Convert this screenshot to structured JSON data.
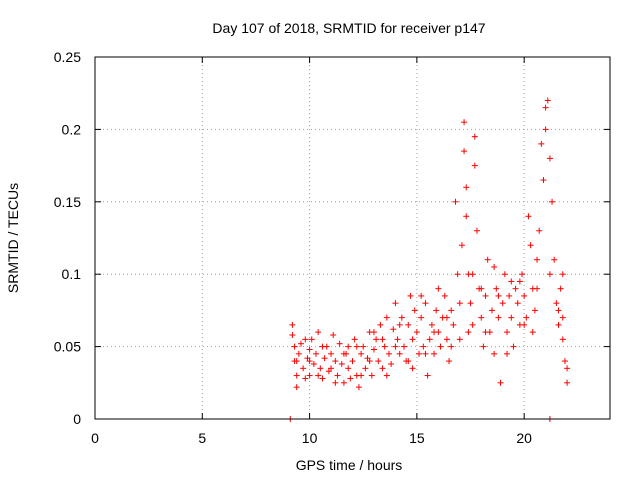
{
  "chart_data": {
    "type": "scatter",
    "title": "Day 107 of 2018, SRMTID for receiver p147",
    "xlabel": "GPS time / hours",
    "ylabel": "SRMTID / TECUs",
    "xlim": [
      0,
      24
    ],
    "ylim": [
      0,
      0.25
    ],
    "xticks": [
      0,
      5,
      10,
      15,
      20
    ],
    "yticks": [
      0,
      0.05,
      0.1,
      0.15,
      0.2,
      0.25
    ],
    "ytick_labels": [
      "0",
      "0.05",
      "0.1",
      "0.15",
      "0.2",
      "0.25"
    ],
    "grid": true,
    "series": [
      {
        "name": "SRMTID",
        "color": "#ff0000",
        "marker": "plus",
        "points": [
          [
            9.1,
            0.0
          ],
          [
            21.2,
            0.0
          ],
          [
            9.2,
            0.065
          ],
          [
            9.2,
            0.058
          ],
          [
            9.3,
            0.05
          ],
          [
            9.3,
            0.04
          ],
          [
            9.4,
            0.03
          ],
          [
            9.4,
            0.022
          ],
          [
            9.5,
            0.045
          ],
          [
            9.6,
            0.052
          ],
          [
            9.7,
            0.035
          ],
          [
            9.8,
            0.028
          ],
          [
            9.9,
            0.042
          ],
          [
            10.0,
            0.048
          ],
          [
            10.0,
            0.03
          ],
          [
            10.1,
            0.055
          ],
          [
            10.2,
            0.038
          ],
          [
            10.3,
            0.045
          ],
          [
            10.4,
            0.06
          ],
          [
            10.5,
            0.035
          ],
          [
            10.6,
            0.028
          ],
          [
            10.7,
            0.042
          ],
          [
            10.8,
            0.05
          ],
          [
            10.9,
            0.033
          ],
          [
            11.0,
            0.045
          ],
          [
            11.1,
            0.058
          ],
          [
            11.2,
            0.04
          ],
          [
            11.3,
            0.03
          ],
          [
            11.4,
            0.052
          ],
          [
            11.5,
            0.038
          ],
          [
            11.6,
            0.025
          ],
          [
            11.7,
            0.045
          ],
          [
            11.8,
            0.035
          ],
          [
            11.9,
            0.028
          ],
          [
            12.0,
            0.04
          ],
          [
            12.1,
            0.055
          ],
          [
            12.2,
            0.03
          ],
          [
            12.3,
            0.022
          ],
          [
            12.4,
            0.045
          ],
          [
            12.5,
            0.05
          ],
          [
            12.6,
            0.035
          ],
          [
            12.7,
            0.042
          ],
          [
            12.8,
            0.06
          ],
          [
            12.9,
            0.03
          ],
          [
            13.0,
            0.048
          ],
          [
            13.1,
            0.055
          ],
          [
            13.2,
            0.04
          ],
          [
            13.3,
            0.065
          ],
          [
            13.4,
            0.035
          ],
          [
            13.5,
            0.05
          ],
          [
            13.6,
            0.07
          ],
          [
            13.7,
            0.045
          ],
          [
            13.8,
            0.038
          ],
          [
            13.9,
            0.062
          ],
          [
            14.0,
            0.08
          ],
          [
            14.1,
            0.055
          ],
          [
            14.2,
            0.045
          ],
          [
            14.3,
            0.07
          ],
          [
            14.4,
            0.05
          ],
          [
            14.5,
            0.04
          ],
          [
            14.6,
            0.065
          ],
          [
            14.7,
            0.085
          ],
          [
            14.8,
            0.055
          ],
          [
            14.9,
            0.075
          ],
          [
            15.0,
            0.06
          ],
          [
            15.1,
            0.045
          ],
          [
            15.2,
            0.07
          ],
          [
            15.3,
            0.05
          ],
          [
            15.4,
            0.08
          ],
          [
            15.5,
            0.03
          ],
          [
            15.6,
            0.055
          ],
          [
            15.7,
            0.065
          ],
          [
            15.8,
            0.045
          ],
          [
            15.9,
            0.075
          ],
          [
            16.0,
            0.06
          ],
          [
            16.1,
            0.05
          ],
          [
            16.2,
            0.07
          ],
          [
            16.3,
            0.085
          ],
          [
            16.4,
            0.055
          ],
          [
            16.5,
            0.04
          ],
          [
            16.6,
            0.075
          ],
          [
            16.7,
            0.065
          ],
          [
            16.8,
            0.15
          ],
          [
            16.9,
            0.1
          ],
          [
            17.0,
            0.08
          ],
          [
            17.1,
            0.12
          ],
          [
            17.2,
            0.205
          ],
          [
            17.2,
            0.185
          ],
          [
            17.3,
            0.16
          ],
          [
            17.3,
            0.14
          ],
          [
            17.4,
            0.1
          ],
          [
            17.5,
            0.08
          ],
          [
            17.6,
            0.065
          ],
          [
            17.7,
            0.195
          ],
          [
            17.7,
            0.175
          ],
          [
            17.8,
            0.13
          ],
          [
            17.9,
            0.09
          ],
          [
            18.0,
            0.07
          ],
          [
            18.1,
            0.05
          ],
          [
            18.2,
            0.085
          ],
          [
            18.3,
            0.11
          ],
          [
            18.4,
            0.06
          ],
          [
            18.5,
            0.075
          ],
          [
            18.6,
            0.045
          ],
          [
            18.7,
            0.09
          ],
          [
            18.8,
            0.07
          ],
          [
            18.9,
            0.025
          ],
          [
            19.0,
            0.08
          ],
          [
            19.1,
            0.1
          ],
          [
            19.2,
            0.06
          ],
          [
            19.3,
            0.085
          ],
          [
            19.4,
            0.07
          ],
          [
            19.5,
            0.05
          ],
          [
            19.6,
            0.09
          ],
          [
            19.7,
            0.08
          ],
          [
            19.8,
            0.065
          ],
          [
            19.9,
            0.1
          ],
          [
            20.0,
            0.085
          ],
          [
            20.1,
            0.07
          ],
          [
            20.2,
            0.14
          ],
          [
            20.3,
            0.12
          ],
          [
            20.4,
            0.09
          ],
          [
            20.5,
            0.075
          ],
          [
            20.6,
            0.11
          ],
          [
            20.7,
            0.13
          ],
          [
            20.8,
            0.19
          ],
          [
            20.9,
            0.165
          ],
          [
            21.0,
            0.215
          ],
          [
            21.0,
            0.2
          ],
          [
            21.1,
            0.22
          ],
          [
            21.2,
            0.18
          ],
          [
            21.3,
            0.15
          ],
          [
            21.4,
            0.11
          ],
          [
            21.5,
            0.08
          ],
          [
            21.6,
            0.065
          ],
          [
            21.7,
            0.09
          ],
          [
            21.8,
            0.055
          ],
          [
            21.9,
            0.04
          ],
          [
            22.0,
            0.025
          ],
          [
            22.0,
            0.035
          ],
          [
            21.8,
            0.1
          ],
          [
            21.6,
            0.075
          ],
          [
            20.4,
            0.06
          ],
          [
            19.8,
            0.095
          ],
          [
            19.2,
            0.045
          ],
          [
            18.6,
            0.105
          ],
          [
            18.0,
            0.09
          ],
          [
            17.4,
            0.06
          ],
          [
            16.6,
            0.05
          ],
          [
            16.0,
            0.09
          ],
          [
            15.4,
            0.045
          ],
          [
            14.8,
            0.035
          ],
          [
            14.2,
            0.065
          ],
          [
            13.6,
            0.03
          ],
          [
            13.0,
            0.06
          ],
          [
            12.4,
            0.03
          ],
          [
            11.8,
            0.05
          ],
          [
            11.2,
            0.025
          ],
          [
            10.6,
            0.05
          ],
          [
            10.0,
            0.04
          ],
          [
            9.4,
            0.04
          ],
          [
            9.8,
            0.055
          ],
          [
            10.4,
            0.03
          ],
          [
            11.0,
            0.035
          ],
          [
            11.6,
            0.045
          ],
          [
            12.2,
            0.05
          ],
          [
            12.8,
            0.04
          ],
          [
            13.4,
            0.055
          ],
          [
            14.0,
            0.05
          ],
          [
            14.6,
            0.04
          ],
          [
            15.2,
            0.085
          ],
          [
            15.8,
            0.06
          ],
          [
            16.4,
            0.07
          ],
          [
            17.0,
            0.055
          ],
          [
            17.6,
            0.1
          ],
          [
            18.2,
            0.06
          ],
          [
            18.8,
            0.085
          ],
          [
            19.4,
            0.095
          ],
          [
            20.0,
            0.065
          ],
          [
            20.6,
            0.09
          ],
          [
            21.2,
            0.1
          ],
          [
            21.8,
            0.07
          ]
        ]
      }
    ]
  }
}
